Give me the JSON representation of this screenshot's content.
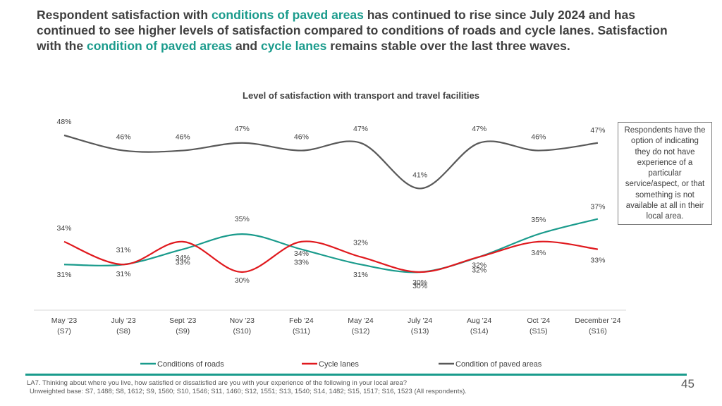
{
  "headline": {
    "p1": "Respondent satisfaction with ",
    "h1": "conditions of paved areas",
    "p2": " has continued to rise since July 2024 and has continued to see higher levels of satisfaction compared to conditions of roads and cycle lanes. Satisfaction with the ",
    "h2": "condition of paved areas",
    "p3": " and ",
    "h3": "cycle lanes",
    "p4": " remains stable over the last three waves."
  },
  "note": "Respondents have the option of indicating they do not have experience of a particular service/aspect, or that something is not available at all in their local area.",
  "footnote": {
    "question": "LA7. Thinking about where you live, how satisfied or dissatisfied are you with your experience of the following in your local area?",
    "base": "Unweighted base: S7, 1488; S8, 1612; S9, 1560; S10, 1546; S11, 1460; S12, 1551; S13, 1540; S14, 1482; S15, 1517; S16, 1523 (All respondents)."
  },
  "page_number": "45",
  "colors": {
    "teal": "#1a9b8c",
    "red": "#e0191e",
    "grey": "#595959"
  },
  "chart_data": {
    "type": "line",
    "title": "Level of satisfaction with transport and travel facilities",
    "categories": [
      [
        "May '23",
        "(S7)"
      ],
      [
        "July '23",
        "(S8)"
      ],
      [
        "Sept '23",
        "(S9)"
      ],
      [
        "Nov '23",
        "(S10)"
      ],
      [
        "Feb '24",
        "(S11)"
      ],
      [
        "May '24",
        "(S12)"
      ],
      [
        "July '24",
        "(S13)"
      ],
      [
        "Aug '24",
        "(S14)"
      ],
      [
        "Oct '24",
        "(S15)"
      ],
      [
        "December '24",
        "(S16)"
      ]
    ],
    "ylim": [
      25,
      50
    ],
    "series": [
      {
        "name": "Conditions of roads",
        "color": "#1a9b8c",
        "values": [
          31,
          31,
          33,
          35,
          33,
          31,
          30,
          32,
          35,
          37
        ],
        "labels": [
          "31%",
          "31%",
          "33%",
          "35%",
          "33%",
          "31%",
          "30%",
          "32%",
          "35%",
          "37%"
        ]
      },
      {
        "name": "Cycle lanes",
        "color": "#e0191e",
        "values": [
          34,
          31,
          34,
          30,
          34,
          32,
          30,
          32,
          34,
          33
        ],
        "labels": [
          "34%",
          "31%",
          "34%",
          "30%",
          "34%",
          "32%",
          "30%",
          "32%",
          "34%",
          "33%"
        ]
      },
      {
        "name": "Condition of paved areas",
        "color": "#595959",
        "values": [
          48,
          46,
          46,
          47,
          46,
          47,
          41,
          47,
          46,
          47
        ],
        "labels": [
          "48%",
          "46%",
          "46%",
          "47%",
          "46%",
          "47%",
          "41%",
          "47%",
          "46%",
          "47%"
        ]
      }
    ],
    "legend_position": "bottom"
  }
}
